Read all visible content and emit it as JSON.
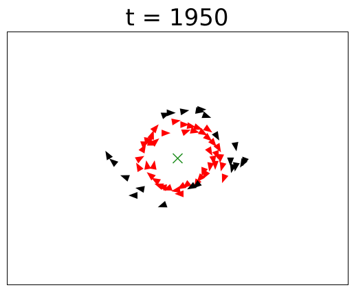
{
  "chart_data": {
    "type": "scatter",
    "title": "t = 1950",
    "xlabel": "",
    "ylabel": "",
    "xlim": [
      -10,
      10
    ],
    "ylim": [
      -7.5,
      7.5
    ],
    "grid": false,
    "ticks": "none",
    "center": {
      "x": 0.0,
      "y": 0.0,
      "marker": "x",
      "color": "#1a8c1a"
    },
    "series": [
      {
        "color": "#ff0000",
        "marker": "triangle",
        "points": [
          {
            "x": -2.2,
            "y": 0.0,
            "angle": 30
          },
          {
            "x": -2.0,
            "y": 0.6,
            "angle": 60
          },
          {
            "x": -1.9,
            "y": 0.9,
            "angle": 20
          },
          {
            "x": -1.7,
            "y": 1.1,
            "angle": 10
          },
          {
            "x": -1.5,
            "y": 1.4,
            "angle": 70
          },
          {
            "x": -1.3,
            "y": 1.8,
            "angle": 50
          },
          {
            "x": -1.6,
            "y": 1.0,
            "angle": 90
          },
          {
            "x": -0.7,
            "y": 1.5,
            "angle": 0
          },
          {
            "x": -1.3,
            "y": 1.0,
            "angle": 40
          },
          {
            "x": -2.3,
            "y": -0.5,
            "angle": 120
          },
          {
            "x": -1.8,
            "y": -0.4,
            "angle": 100
          },
          {
            "x": -1.4,
            "y": -0.4,
            "angle": 80
          },
          {
            "x": -1.6,
            "y": -1.0,
            "angle": 140
          },
          {
            "x": -1.3,
            "y": -1.3,
            "angle": 150
          },
          {
            "x": -1.1,
            "y": -1.6,
            "angle": 160
          },
          {
            "x": -0.9,
            "y": -1.7,
            "angle": 170
          },
          {
            "x": -0.6,
            "y": -1.8,
            "angle": 200
          },
          {
            "x": -0.1,
            "y": -1.9,
            "angle": 190
          },
          {
            "x": 0.2,
            "y": -1.7,
            "angle": 210
          },
          {
            "x": 0.5,
            "y": -1.6,
            "angle": 220
          },
          {
            "x": 0.1,
            "y": -2.1,
            "angle": 180
          },
          {
            "x": 1.1,
            "y": -1.5,
            "angle": 240
          },
          {
            "x": 1.3,
            "y": -1.2,
            "angle": 230
          },
          {
            "x": 1.5,
            "y": -0.8,
            "angle": 250
          },
          {
            "x": 1.9,
            "y": -0.5,
            "angle": 260
          },
          {
            "x": 2.2,
            "y": -0.4,
            "angle": 270
          },
          {
            "x": 2.1,
            "y": -0.1,
            "angle": 280
          },
          {
            "x": 2.3,
            "y": 0.2,
            "angle": 290
          },
          {
            "x": 1.9,
            "y": 0.4,
            "angle": 300
          },
          {
            "x": 2.5,
            "y": 0.0,
            "angle": 265
          },
          {
            "x": 2.6,
            "y": -0.5,
            "angle": 255
          },
          {
            "x": 2.4,
            "y": 0.6,
            "angle": 300
          },
          {
            "x": 2.1,
            "y": 0.9,
            "angle": 310
          },
          {
            "x": 1.8,
            "y": 1.2,
            "angle": 320
          },
          {
            "x": 1.5,
            "y": 1.5,
            "angle": 330
          },
          {
            "x": 1.2,
            "y": 1.8,
            "angle": 340
          },
          {
            "x": 0.8,
            "y": 1.9,
            "angle": 350
          },
          {
            "x": 0.4,
            "y": 2.0,
            "angle": 0
          },
          {
            "x": -0.1,
            "y": 2.2,
            "angle": 10
          },
          {
            "x": 0.5,
            "y": 1.6,
            "angle": 20
          },
          {
            "x": 1.0,
            "y": 1.6,
            "angle": 345
          },
          {
            "x": 1.8,
            "y": 1.7,
            "angle": 325
          },
          {
            "x": 1.6,
            "y": -1.0,
            "angle": 240
          },
          {
            "x": 2.7,
            "y": -1.2,
            "angle": 250
          }
        ]
      },
      {
        "color": "#000000",
        "marker": "triangle",
        "points": [
          {
            "x": -0.7,
            "y": 2.6,
            "angle": 20
          },
          {
            "x": -0.4,
            "y": 2.7,
            "angle": 0
          },
          {
            "x": 0.4,
            "y": 2.8,
            "angle": 10
          },
          {
            "x": 1.3,
            "y": 2.8,
            "angle": 350
          },
          {
            "x": 1.7,
            "y": 2.5,
            "angle": 340
          },
          {
            "x": 1.4,
            "y": 2.9,
            "angle": 0
          },
          {
            "x": 2.3,
            "y": 1.3,
            "angle": 300
          },
          {
            "x": 3.4,
            "y": 0.7,
            "angle": 280
          },
          {
            "x": 3.4,
            "y": -0.5,
            "angle": 260
          },
          {
            "x": 3.9,
            "y": -0.2,
            "angle": 250
          },
          {
            "x": 3.8,
            "y": -0.3,
            "angle": 240
          },
          {
            "x": 3.1,
            "y": -0.2,
            "angle": 270
          },
          {
            "x": 1.1,
            "y": -1.6,
            "angle": 220
          },
          {
            "x": -4.1,
            "y": 0.2,
            "angle": 120
          },
          {
            "x": -3.8,
            "y": -0.2,
            "angle": 140
          },
          {
            "x": -3.1,
            "y": -1.1,
            "angle": 160
          },
          {
            "x": -2.6,
            "y": -2.2,
            "angle": 180
          },
          {
            "x": -2.2,
            "y": -1.8,
            "angle": 170
          },
          {
            "x": -0.9,
            "y": -2.8,
            "angle": 200
          },
          {
            "x": 0.8,
            "y": -1.7,
            "angle": 210
          },
          {
            "x": 3.2,
            "y": -0.6,
            "angle": 255
          }
        ]
      }
    ]
  }
}
